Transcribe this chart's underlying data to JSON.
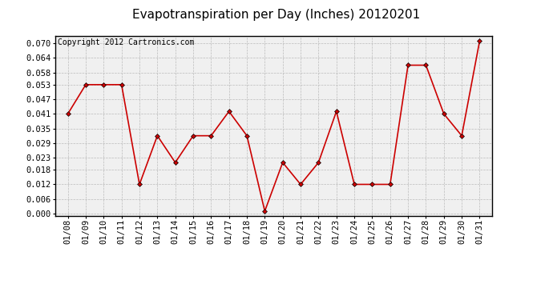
{
  "title": "Evapotranspiration per Day (Inches) 20120201",
  "copyright_text": "Copyright 2012 Cartronics.com",
  "x_labels": [
    "01/08",
    "01/09",
    "01/10",
    "01/11",
    "01/12",
    "01/13",
    "01/14",
    "01/15",
    "01/16",
    "01/17",
    "01/18",
    "01/19",
    "01/20",
    "01/21",
    "01/22",
    "01/23",
    "01/24",
    "01/25",
    "01/26",
    "01/27",
    "01/28",
    "01/29",
    "01/30",
    "01/31"
  ],
  "y_values": [
    0.041,
    0.053,
    0.053,
    0.053,
    0.012,
    0.032,
    0.021,
    0.032,
    0.032,
    0.042,
    0.032,
    0.001,
    0.021,
    0.012,
    0.021,
    0.042,
    0.012,
    0.012,
    0.012,
    0.061,
    0.061,
    0.041,
    0.032,
    0.071
  ],
  "line_color": "#cc0000",
  "marker": "D",
  "marker_size": 3,
  "grid_color": "#bbbbbb",
  "bg_color": "#ffffff",
  "plot_bg_color": "#f0f0f0",
  "ylim": [
    -0.001,
    0.073
  ],
  "yticks": [
    0.0,
    0.006,
    0.012,
    0.018,
    0.023,
    0.029,
    0.035,
    0.041,
    0.047,
    0.053,
    0.058,
    0.064,
    0.07
  ],
  "title_fontsize": 11,
  "copyright_fontsize": 7,
  "tick_fontsize": 7.5
}
